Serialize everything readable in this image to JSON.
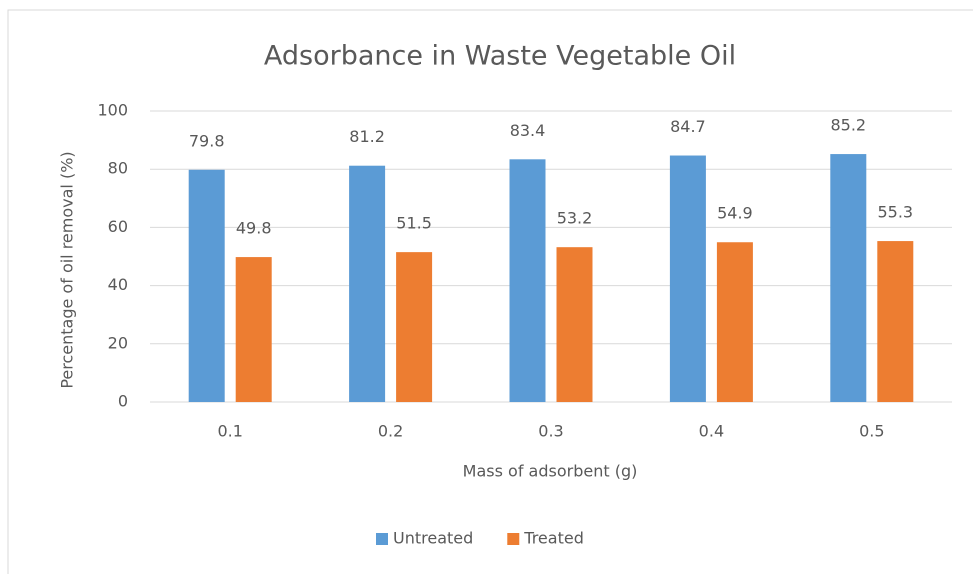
{
  "chart_data": {
    "type": "bar",
    "title": "Adsorbance in Waste Vegetable Oil",
    "x_label": "Mass of adsorbent (g)",
    "y_label": "Percentage of oil removal (%)",
    "categories": [
      "0.1",
      "0.2",
      "0.3",
      "0.4",
      "0.5"
    ],
    "series": [
      {
        "name": "Untreated",
        "color": "#5b9bd5",
        "values": [
          79.8,
          81.2,
          83.4,
          84.7,
          85.2
        ]
      },
      {
        "name": "Treated",
        "color": "#ed7d31",
        "values": [
          49.8,
          51.5,
          53.2,
          54.9,
          55.3
        ]
      }
    ],
    "ylim": [
      0,
      100
    ],
    "yticks": [
      0,
      20,
      40,
      60,
      80,
      100
    ],
    "grid": true,
    "legend": "bottom"
  }
}
